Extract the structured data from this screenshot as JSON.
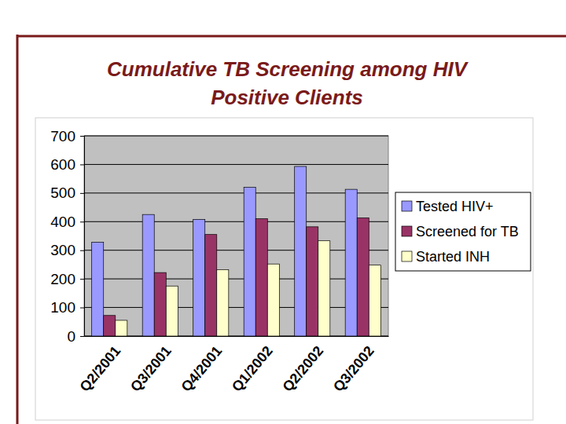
{
  "chart_data": {
    "type": "bar",
    "title": "Cumulative TB Screening among HIV Positive Clients",
    "categories": [
      "Q2/2001",
      "Q3/2001",
      "Q4/2001",
      "Q1/2002",
      "Q2/2002",
      "Q3/2002"
    ],
    "series": [
      {
        "name": "Tested HIV+",
        "color": "#9999ff",
        "values": [
          328,
          425,
          408,
          520,
          593,
          513
        ]
      },
      {
        "name": "Screened for TB",
        "color": "#993366",
        "values": [
          72,
          222,
          355,
          410,
          382,
          413
        ]
      },
      {
        "name": "Started INH",
        "color": "#ffffcc",
        "values": [
          55,
          175,
          232,
          252,
          333,
          248
        ]
      }
    ],
    "ylim": [
      0,
      700
    ],
    "yticks": [
      0,
      100,
      200,
      300,
      400,
      500,
      600,
      700
    ],
    "grid": true,
    "legend": "right"
  }
}
